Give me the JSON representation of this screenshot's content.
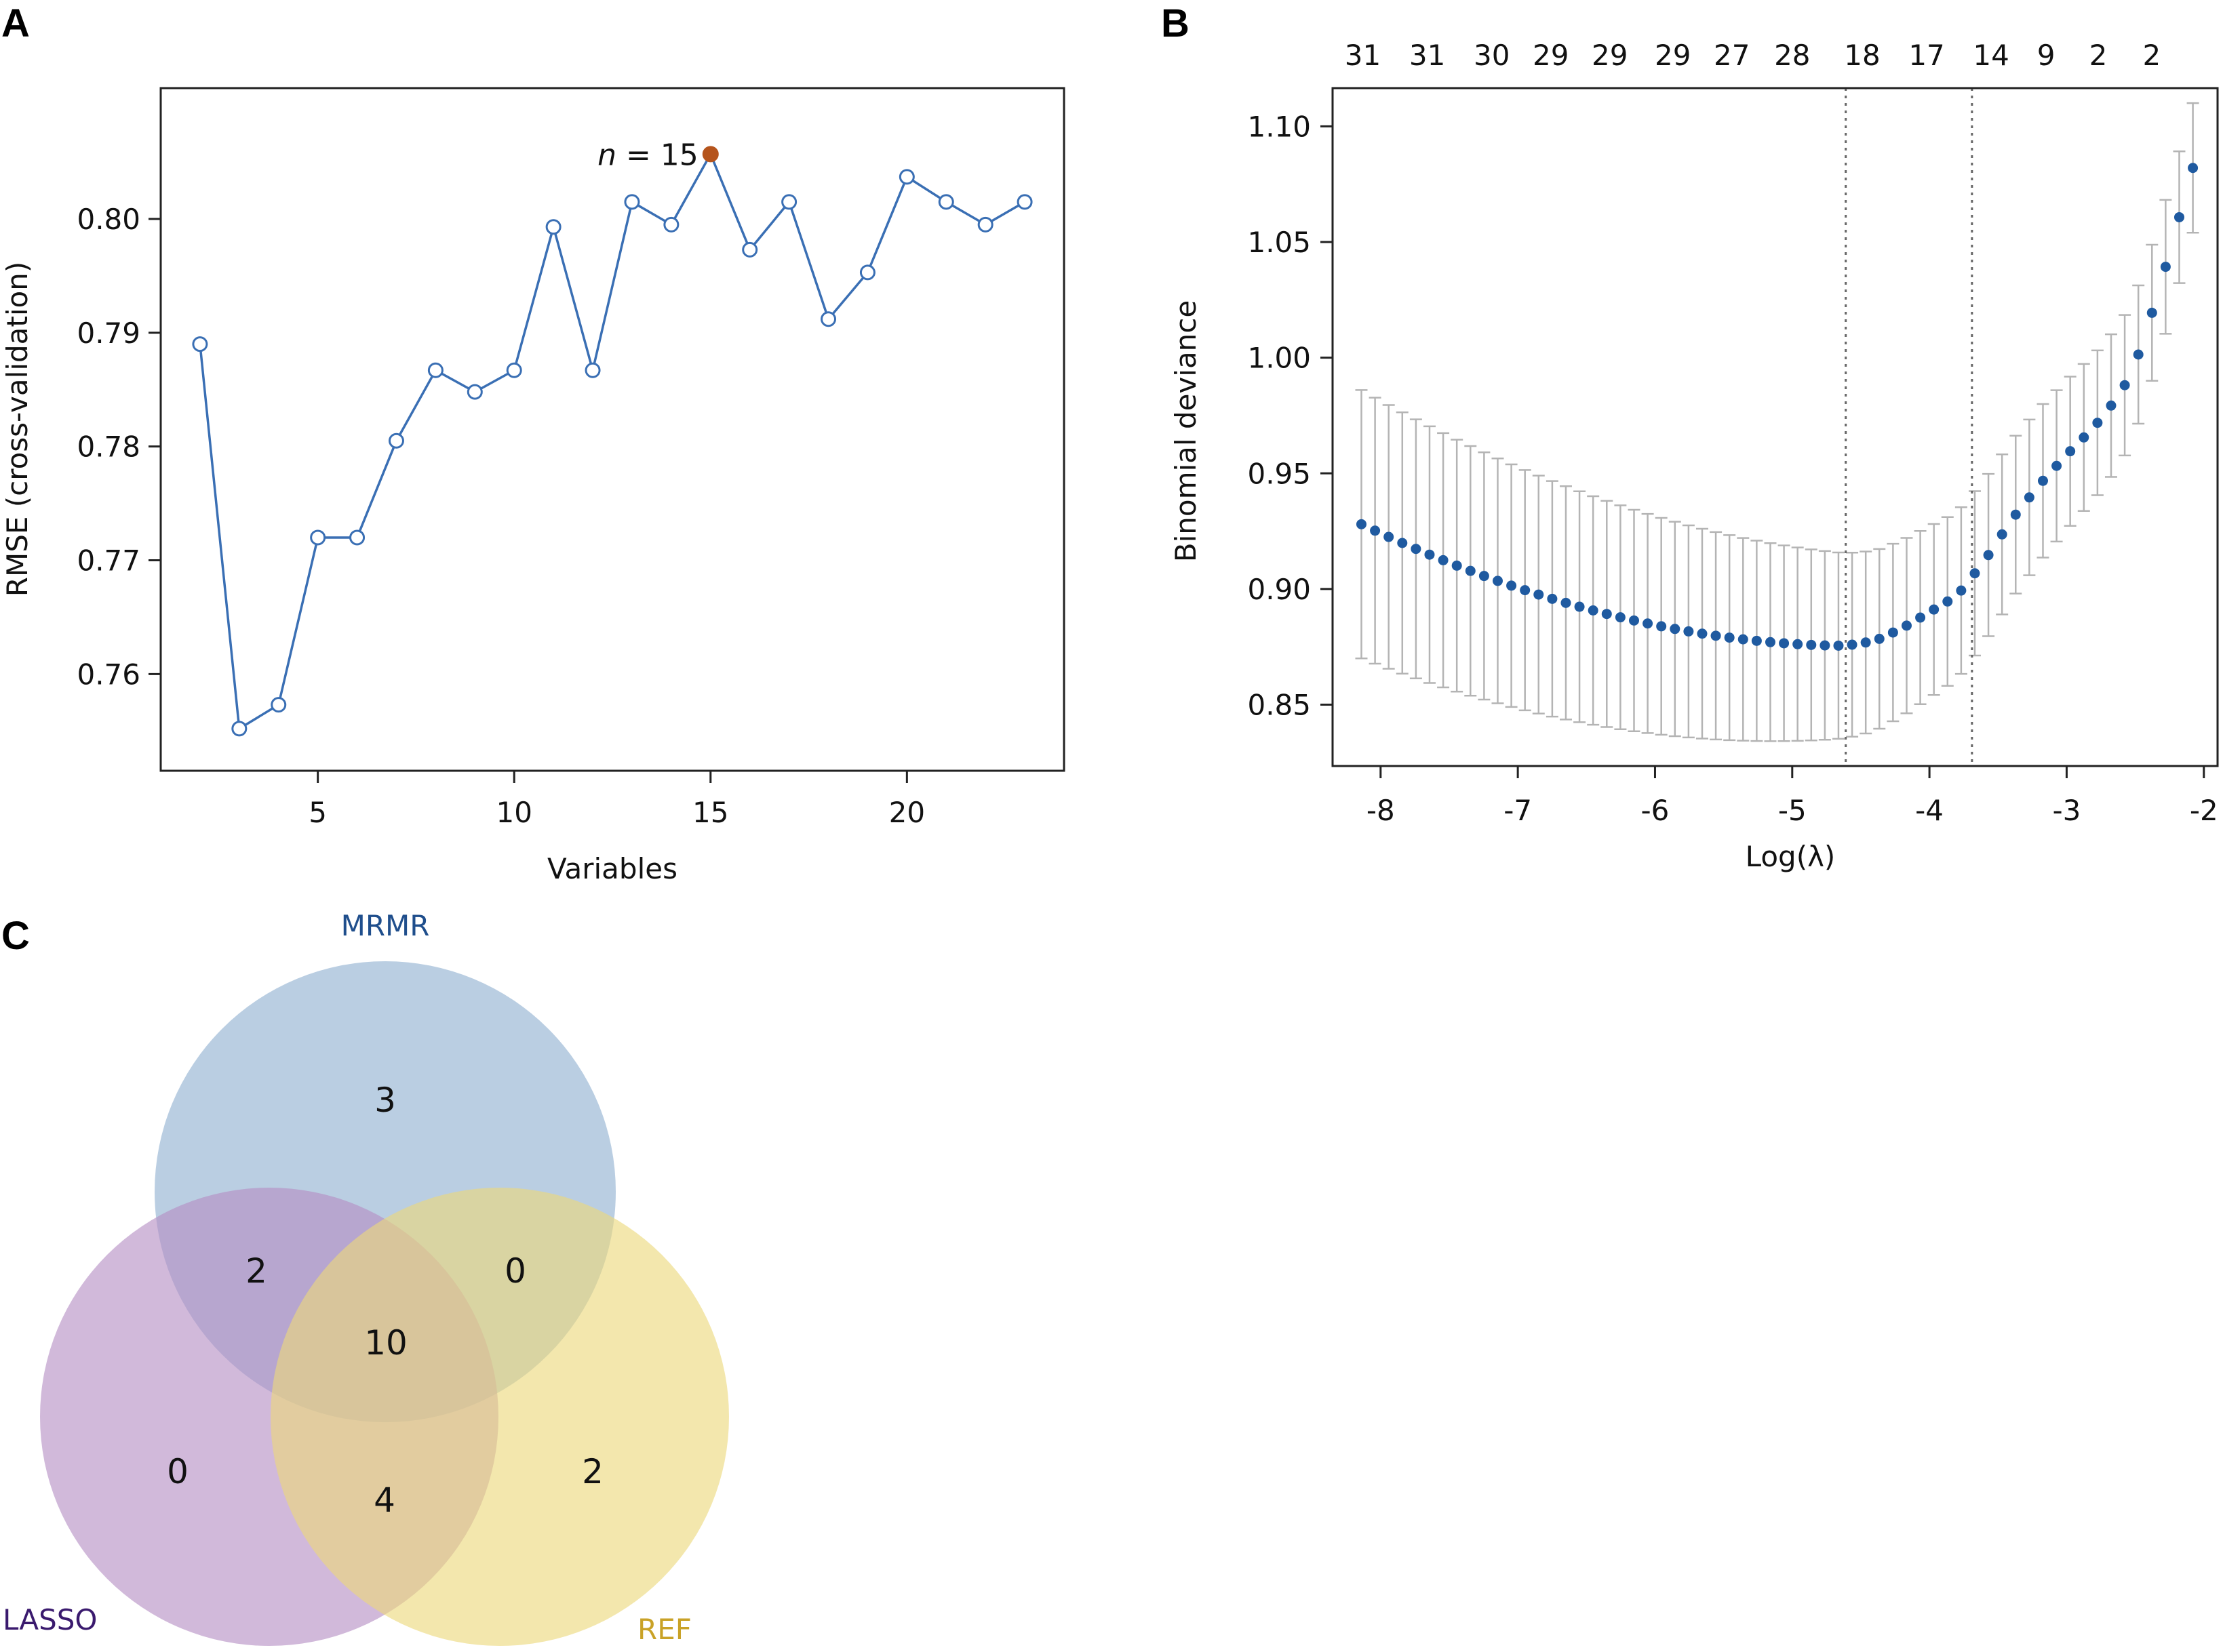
{
  "panels": {
    "a": "A",
    "b": "B",
    "c": "C"
  },
  "chart_data": [
    {
      "type": "line",
      "panel": "A",
      "xlabel": "Variables",
      "ylabel": "RMSE (cross-validation)",
      "xlim": [
        1,
        24
      ],
      "ylim": [
        0.7515,
        0.8115
      ],
      "xticks": [
        5,
        10,
        15,
        20
      ],
      "yticks": [
        0.76,
        0.77,
        0.78,
        0.79,
        0.8
      ],
      "ytick_labels": [
        "0.76",
        "0.77",
        "0.78",
        "0.79",
        "0.80"
      ],
      "colors": {
        "line": "#3a6fb4",
        "highlight": "#b5541c"
      },
      "x": [
        2,
        3,
        4,
        5,
        6,
        7,
        8,
        9,
        10,
        11,
        12,
        13,
        14,
        15,
        16,
        17,
        18,
        19,
        20,
        21,
        22,
        23
      ],
      "y": [
        0.789,
        0.7552,
        0.7573,
        0.772,
        0.772,
        0.7805,
        0.7867,
        0.7848,
        0.7867,
        0.7993,
        0.7867,
        0.8015,
        0.7995,
        0.8057,
        0.7973,
        0.8015,
        0.7912,
        0.7953,
        0.8037,
        0.8015,
        0.7995,
        0.8015
      ],
      "highlight": {
        "x": 15,
        "y": 0.8057,
        "label_italic": "n",
        "label_rest": " = 15"
      }
    },
    {
      "type": "scatter",
      "panel": "B",
      "xlabel": "Log(λ)",
      "ylabel": "Binomial deviance",
      "xlim": [
        -8.35,
        -1.9
      ],
      "ylim": [
        0.8235,
        1.1165
      ],
      "xticks": [
        -8,
        -7,
        -6,
        -5,
        -4,
        -3,
        -2
      ],
      "yticks": [
        0.85,
        0.9,
        0.95,
        1.0,
        1.05,
        1.1
      ],
      "ytick_labels": [
        "0.85",
        "0.90",
        "0.95",
        "1.00",
        "1.05",
        "1.10"
      ],
      "colors": {
        "point": "#1f5aa0",
        "errorbar": "#b4b4b4",
        "vline": "#666666"
      },
      "top_axis": [
        {
          "x": -8.13,
          "label": "31"
        },
        {
          "x": -7.66,
          "label": "31"
        },
        {
          "x": -7.19,
          "label": "30"
        },
        {
          "x": -6.76,
          "label": "29"
        },
        {
          "x": -6.33,
          "label": "29"
        },
        {
          "x": -5.87,
          "label": "29"
        },
        {
          "x": -5.44,
          "label": "27"
        },
        {
          "x": -5.0,
          "label": "28"
        },
        {
          "x": -4.49,
          "label": "18"
        },
        {
          "x": -4.02,
          "label": "17"
        },
        {
          "x": -3.55,
          "label": "14"
        },
        {
          "x": -3.15,
          "label": "9"
        },
        {
          "x": -2.77,
          "label": "2"
        },
        {
          "x": -2.38,
          "label": "2"
        }
      ],
      "vlines": [
        -4.61,
        -3.69
      ],
      "lambda": {
        "start": -8.14,
        "end": -2.08,
        "count": 62,
        "min_x": -4.61,
        "min_y": 0.8755,
        "err_min": 0.04,
        "dev_ref": -8.14,
        "dev_ref_y": 0.928,
        "err_ref": 0.058,
        "right_profile": [
          [
            -4.61,
            0.8755
          ],
          [
            -4.4,
            0.8775
          ],
          [
            -4.2,
            0.883
          ],
          [
            -4.0,
            0.89
          ],
          [
            -3.8,
            0.897
          ],
          [
            -3.6,
            0.912
          ],
          [
            -3.4,
            0.93
          ],
          [
            -3.2,
            0.945
          ],
          [
            -3.0,
            0.958
          ],
          [
            -2.8,
            0.97
          ],
          [
            -2.6,
            0.985
          ],
          [
            -2.45,
            1.005
          ],
          [
            -2.35,
            1.025
          ],
          [
            -2.25,
            1.045
          ],
          [
            -2.16,
            1.065
          ],
          [
            -2.08,
            1.082
          ]
        ]
      }
    },
    {
      "type": "venn",
      "panel": "C",
      "sets": [
        {
          "name": "MRMR",
          "color": "#8fb0d0",
          "label_color": "#1f4e8c"
        },
        {
          "name": "LASSO",
          "color": "#b48ec4",
          "label_color": "#3a1a6e"
        },
        {
          "name": "REF",
          "color": "#ecd97a",
          "label_color": "#c9a227"
        }
      ],
      "regions": {
        "mrmr_only": 3,
        "lasso_only": 0,
        "ref_only": 2,
        "mrmr_lasso": 2,
        "mrmr_ref": 0,
        "lasso_ref": 4,
        "all": 10
      }
    }
  ]
}
